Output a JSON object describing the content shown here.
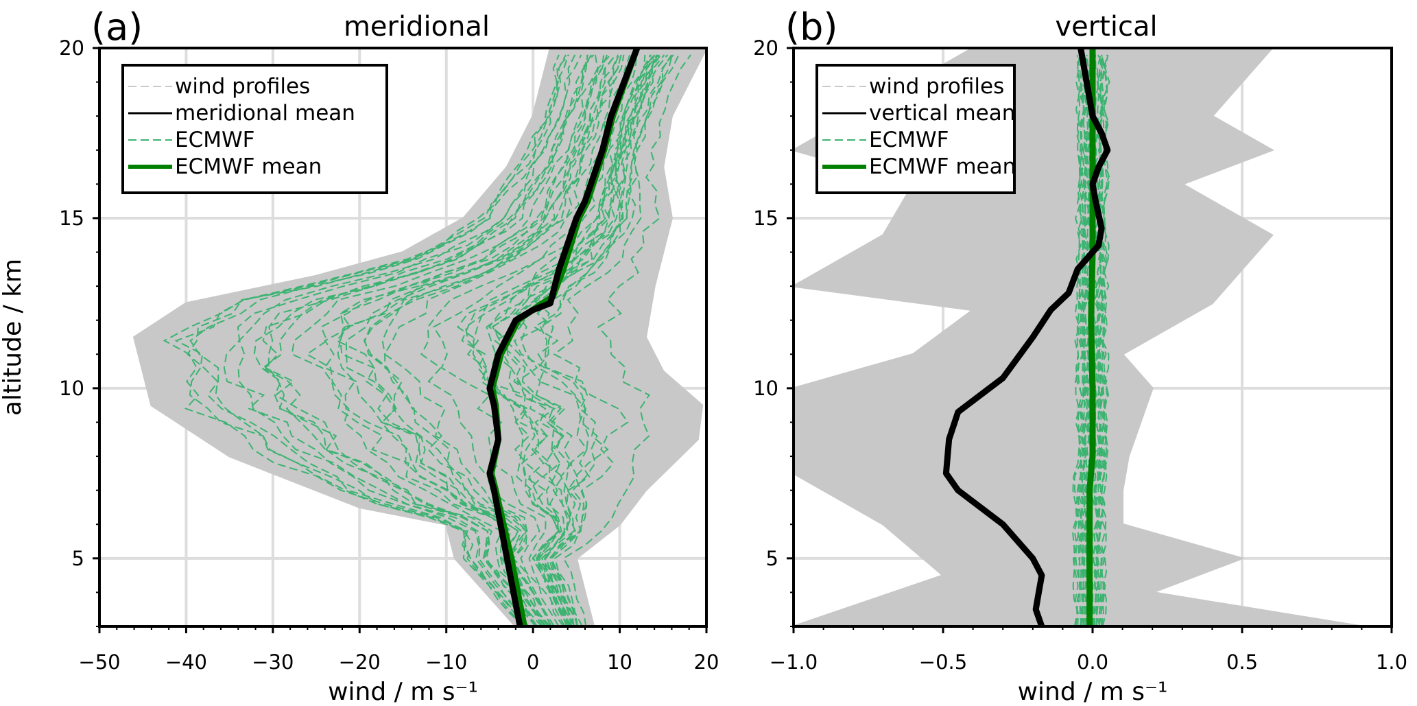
{
  "chart_data": [
    {
      "type": "line",
      "panel_label": "(a)",
      "title": "meridional",
      "xlabel": "wind / m s⁻¹",
      "ylabel": "altitude / km",
      "xlim": [
        -50,
        20
      ],
      "ylim": [
        3,
        20
      ],
      "xticks": [
        -50,
        -40,
        -30,
        -20,
        -10,
        0,
        10,
        20
      ],
      "xtick_labels": [
        "−50",
        "−40",
        "−30",
        "−20",
        "−10",
        "0",
        "10",
        "20"
      ],
      "yticks": [
        5,
        10,
        15,
        20
      ],
      "ytick_labels": [
        "5",
        "10",
        "15",
        "20"
      ],
      "grid": true,
      "legend_position": "top-left",
      "legend": [
        "wind profiles",
        "meridional mean",
        "ECMWF",
        "ECMWF mean"
      ],
      "profile_envelope": {
        "left": [
          [
            -2,
            3
          ],
          [
            -9,
            5
          ],
          [
            -10,
            6
          ],
          [
            -20,
            6.5
          ],
          [
            -35,
            8
          ],
          [
            -44,
            9.5
          ],
          [
            -46,
            11.5
          ],
          [
            -40,
            12.5
          ],
          [
            -25,
            13.3
          ],
          [
            -15,
            14
          ],
          [
            -8,
            15
          ],
          [
            -3,
            16.5
          ],
          [
            0,
            18
          ],
          [
            2,
            20
          ]
        ],
        "right": [
          [
            7,
            3
          ],
          [
            5,
            5
          ],
          [
            10,
            6
          ],
          [
            13,
            7
          ],
          [
            19,
            8.5
          ],
          [
            19.5,
            9.5
          ],
          [
            15,
            10.5
          ],
          [
            13,
            11.5
          ],
          [
            14,
            13
          ],
          [
            16,
            15
          ],
          [
            15,
            16.5
          ],
          [
            16,
            18
          ],
          [
            20,
            20
          ]
        ]
      },
      "series": [
        {
          "name": "meridional mean",
          "points": [
            [
              -1.5,
              3
            ],
            [
              -3,
              5
            ],
            [
              -4.5,
              7
            ],
            [
              -5,
              7.5
            ],
            [
              -4,
              8.5
            ],
            [
              -4.5,
              9.5
            ],
            [
              -5,
              10
            ],
            [
              -4,
              11
            ],
            [
              -2,
              12
            ],
            [
              0,
              12.3
            ],
            [
              2,
              12.5
            ],
            [
              3,
              13.5
            ],
            [
              5,
              15
            ],
            [
              6,
              15.5
            ],
            [
              8,
              17
            ],
            [
              9,
              18
            ],
            [
              10.5,
              19
            ],
            [
              12,
              20
            ]
          ]
        },
        {
          "name": "ECMWF mean",
          "points": [
            [
              -1,
              3
            ],
            [
              -2.5,
              5
            ],
            [
              -4.3,
              7
            ],
            [
              -4.8,
              7.5
            ],
            [
              -4,
              8.5
            ],
            [
              -4.3,
              9.5
            ],
            [
              -4.7,
              10
            ],
            [
              -3.7,
              11
            ],
            [
              -1.7,
              12
            ],
            [
              0.5,
              12.4
            ],
            [
              2.3,
              12.7
            ],
            [
              3.5,
              13.5
            ],
            [
              5.3,
              15
            ],
            [
              6.3,
              15.5
            ],
            [
              8.2,
              17
            ],
            [
              9.2,
              18
            ],
            [
              10.6,
              19
            ],
            [
              12,
              20
            ]
          ]
        }
      ]
    },
    {
      "type": "line",
      "panel_label": "(b)",
      "title": "vertical",
      "xlabel": "wind / m s⁻¹",
      "ylabel": "",
      "xlim": [
        -1.0,
        1.0
      ],
      "ylim": [
        3,
        20
      ],
      "xticks": [
        -1.0,
        -0.5,
        0.0,
        0.5,
        1.0
      ],
      "xtick_labels": [
        "−1.0",
        "−0.5",
        "0.0",
        "0.5",
        "1.0"
      ],
      "yticks": [
        5,
        10,
        15,
        20
      ],
      "ytick_labels": [
        "5",
        "10",
        "15",
        "20"
      ],
      "grid": true,
      "legend_position": "top-left",
      "legend": [
        "wind profiles",
        "vertical mean",
        "ECMWF",
        "ECMWF mean"
      ],
      "profile_envelope": {
        "left": [
          [
            -1,
            3
          ],
          [
            -0.5,
            4.5
          ],
          [
            -0.7,
            6
          ],
          [
            -1,
            7.5
          ],
          [
            -1,
            10
          ],
          [
            -0.6,
            11
          ],
          [
            -0.4,
            12.3
          ],
          [
            -1,
            13
          ],
          [
            -0.7,
            14.5
          ],
          [
            -0.6,
            16
          ],
          [
            -1,
            17
          ],
          [
            -0.7,
            18.5
          ],
          [
            -0.4,
            20
          ]
        ],
        "right": [
          [
            0.9,
            3
          ],
          [
            0.2,
            4
          ],
          [
            0.5,
            5
          ],
          [
            0.1,
            6
          ],
          [
            0.1,
            7
          ],
          [
            0.12,
            8
          ],
          [
            0.2,
            10
          ],
          [
            0.1,
            11
          ],
          [
            0.4,
            12.5
          ],
          [
            0.6,
            14.5
          ],
          [
            0.3,
            16
          ],
          [
            0.6,
            17
          ],
          [
            0.4,
            18
          ],
          [
            0.6,
            20
          ]
        ]
      },
      "series": [
        {
          "name": "vertical mean",
          "points": [
            [
              -0.17,
              3
            ],
            [
              -0.19,
              3.5
            ],
            [
              -0.18,
              4
            ],
            [
              -0.17,
              4.5
            ],
            [
              -0.2,
              5
            ],
            [
              -0.3,
              6
            ],
            [
              -0.45,
              7
            ],
            [
              -0.49,
              7.5
            ],
            [
              -0.48,
              8.5
            ],
            [
              -0.45,
              9.3
            ],
            [
              -0.3,
              10.3
            ],
            [
              -0.2,
              11.5
            ],
            [
              -0.14,
              12.3
            ],
            [
              -0.08,
              12.8
            ],
            [
              -0.05,
              13.5
            ],
            [
              0.02,
              14.2
            ],
            [
              0.03,
              14.7
            ],
            [
              0.01,
              15.5
            ],
            [
              0.0,
              16
            ],
            [
              0.02,
              16.5
            ],
            [
              0.05,
              17
            ],
            [
              0.03,
              17.5
            ],
            [
              0.0,
              18
            ],
            [
              -0.02,
              19
            ],
            [
              -0.04,
              20
            ]
          ]
        },
        {
          "name": "ECMWF mean",
          "points": [
            [
              -0.01,
              3
            ],
            [
              -0.01,
              5
            ],
            [
              -0.01,
              7
            ],
            [
              0.0,
              8
            ],
            [
              0.0,
              10
            ],
            [
              -0.005,
              12
            ],
            [
              0.0,
              14
            ],
            [
              0.0,
              16
            ],
            [
              0.0,
              18
            ],
            [
              0.0,
              20
            ]
          ]
        }
      ]
    }
  ],
  "colors": {
    "profiles": "#c8c8c8",
    "mean": "#000000",
    "ecmwf": "#3cb371",
    "ecmwf_mean": "#008000",
    "grid": "#dddddd"
  }
}
